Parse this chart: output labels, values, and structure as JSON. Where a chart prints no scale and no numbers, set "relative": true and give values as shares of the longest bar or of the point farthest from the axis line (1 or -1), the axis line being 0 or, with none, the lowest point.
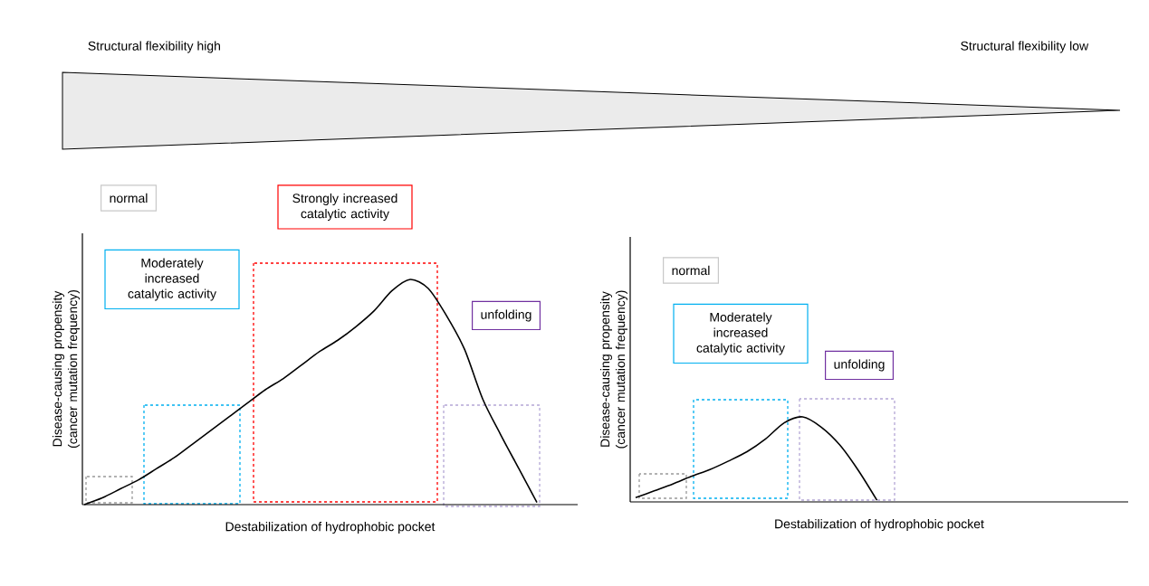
{
  "chart_data": [
    {
      "type": "line",
      "relative": true,
      "xlabel": "Destabilization of hydrophobic pocket",
      "ylabel": "Disease-causing propensity (cancer mutation frequency)",
      "annotations": [
        "Structural flexibility high",
        "Structural flexibility low",
        "normal",
        "Moderately increased catalytic activity",
        "Strongly increased catalytic activity",
        "unfolding"
      ],
      "categories": [
        null,
        null,
        null,
        null,
        null,
        null,
        null,
        null,
        null,
        null,
        null,
        null,
        null,
        null,
        null,
        null,
        null,
        null,
        null,
        null,
        null,
        null,
        null,
        null,
        null,
        null
      ],
      "color": "#000000",
      "values": [
        0,
        0.03,
        0.07,
        0.11,
        0.16,
        0.21,
        0.27,
        0.33,
        0.39,
        0.45,
        0.51,
        0.56,
        0.62,
        0.68,
        0.73,
        0.79,
        0.86,
        0.95,
        1,
        0.96,
        0.84,
        0.69,
        0.47,
        0.31,
        0.16,
        0.01
      ]
    },
    {
      "type": "line",
      "relative": true,
      "xlabel": "Destabilization of hydrophobic pocket",
      "ylabel": "Disease-causing propensity (cancer mutation frequency)",
      "annotations": [
        "normal",
        "Moderately increased catalytic activity",
        "unfolding"
      ],
      "categories": [
        null,
        null,
        null,
        null,
        null,
        null,
        null,
        null,
        null,
        null,
        null,
        null,
        null,
        null
      ],
      "color": "#000000",
      "values": [
        0.05,
        0.13,
        0.21,
        0.3,
        0.38,
        0.48,
        0.59,
        0.74,
        0.93,
        1,
        0.88,
        0.67,
        0.37,
        0.02
      ]
    }
  ]
}
